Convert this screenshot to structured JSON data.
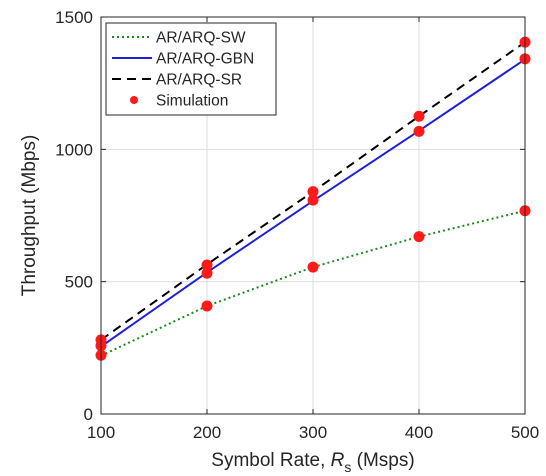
{
  "chart_data": {
    "type": "line",
    "title": "",
    "xlabel": "Symbol Rate, R_s (Msps)",
    "xlabel_parts": {
      "pre": "Symbol Rate, ",
      "var": "R",
      "sub": "s",
      "post": " (Msps)"
    },
    "ylabel": "Throughput (Mbps)",
    "xlim": [
      100,
      500
    ],
    "ylim": [
      0,
      1500
    ],
    "xticks": [
      100,
      200,
      300,
      400,
      500
    ],
    "yticks": [
      0,
      500,
      1000,
      1500
    ],
    "grid": true,
    "legend_position": "top-left",
    "series": [
      {
        "name": "AR/ARQ-SW",
        "style": "dotted",
        "color": "#1a8a1a",
        "x": [
          100,
          200,
          300,
          400,
          500
        ],
        "y": [
          220,
          408,
          555,
          670,
          768
        ]
      },
      {
        "name": "AR/ARQ-GBN",
        "style": "solid",
        "color": "#1f1fdc",
        "x": [
          100,
          200,
          300,
          400,
          500
        ],
        "y": [
          255,
          535,
          805,
          1070,
          1340
        ]
      },
      {
        "name": "AR/ARQ-SR",
        "style": "dashed",
        "color": "#000000",
        "x": [
          100,
          200,
          300,
          400,
          500
        ],
        "y": [
          280,
          565,
          840,
          1125,
          1405
        ]
      },
      {
        "name": "Simulation",
        "style": "markers",
        "color": "#ff1a1a",
        "x": [
          100,
          100,
          100,
          200,
          200,
          200,
          300,
          300,
          300,
          400,
          400,
          400,
          500,
          500,
          500
        ],
        "y": [
          222,
          258,
          280,
          408,
          532,
          563,
          555,
          808,
          840,
          670,
          1068,
          1125,
          768,
          1342,
          1405
        ]
      }
    ]
  }
}
